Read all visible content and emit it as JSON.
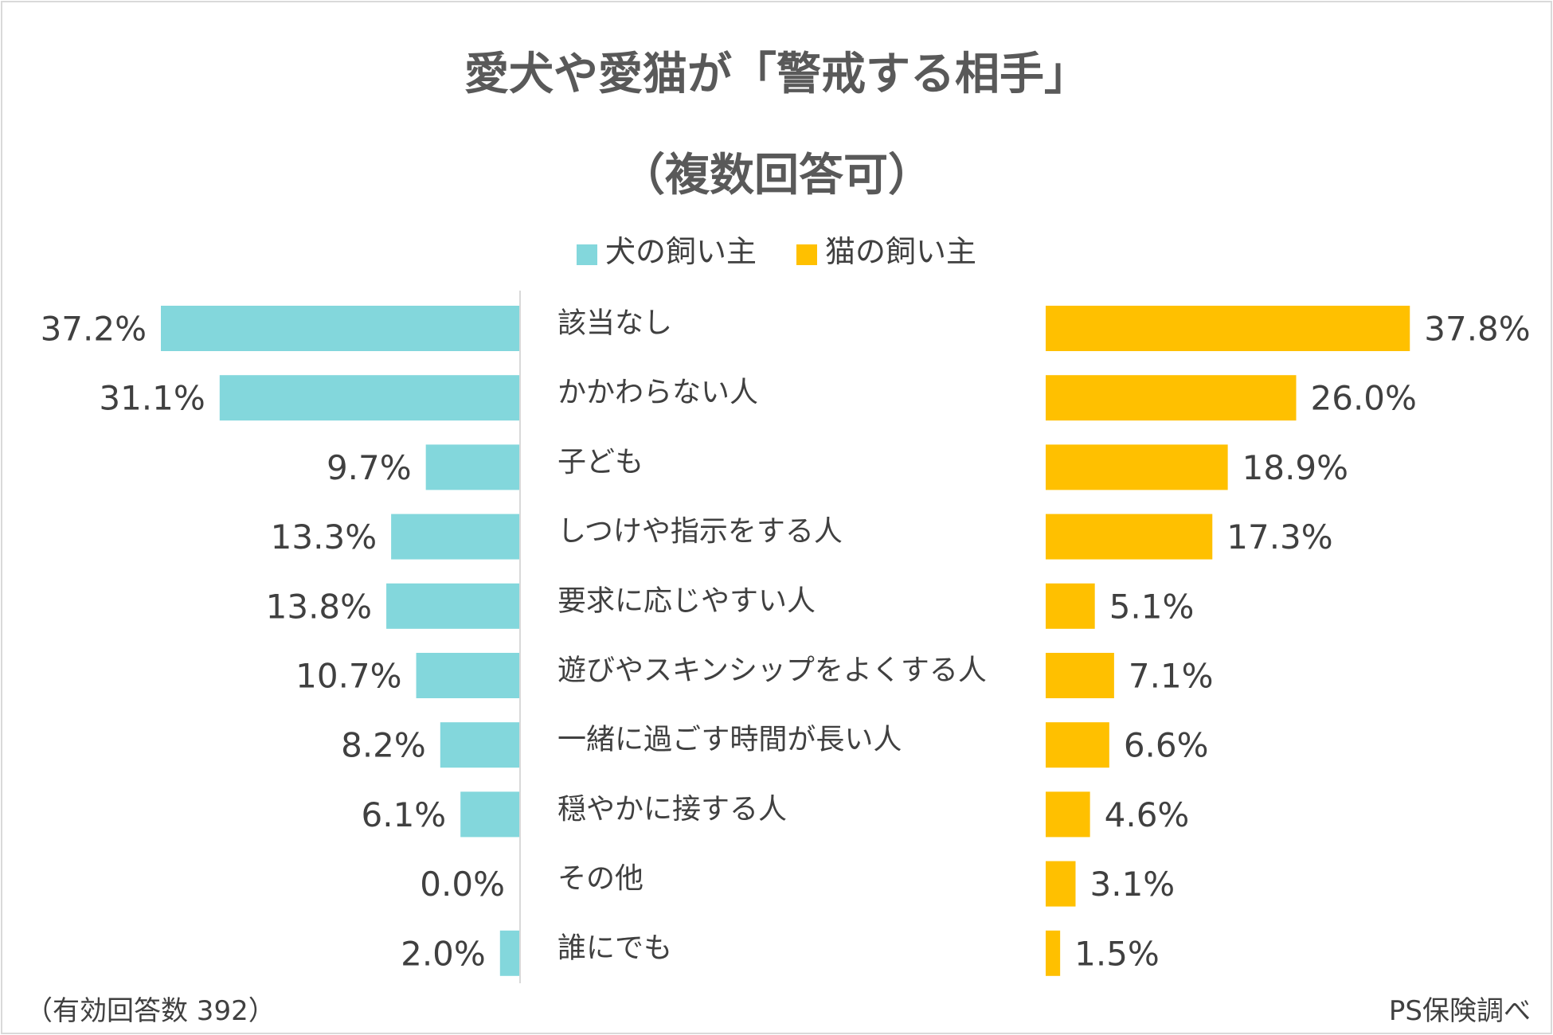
{
  "title": "愛犬や愛猫が「警戒する相手」",
  "subtitle": "（複数回答可）",
  "legend": {
    "dog": "犬の飼い主",
    "cat": "猫の飼い主"
  },
  "colors": {
    "dog": "#83D7DC",
    "cat": "#FFC000",
    "axis": "#d9d9d9",
    "text": "#404040"
  },
  "footer": {
    "sample": "（有効回答数 392）",
    "source": "PS保険調べ"
  },
  "chart_data": {
    "type": "bar",
    "orientation": "horizontal-diverging",
    "title": "愛犬や愛猫が「警戒する相手」",
    "subtitle": "（複数回答可）",
    "categories": [
      "該当なし",
      "かかわらない人",
      "子ども",
      "しつけや指示をする人",
      "要求に応じやすい人",
      "遊びやスキンシップをよくする人",
      "一緒に過ごす時間が長い人",
      "穏やかに接する人",
      "その他",
      "誰にでも"
    ],
    "series": [
      {
        "name": "犬の飼い主",
        "side": "left",
        "values": [
          37.2,
          31.1,
          9.7,
          13.3,
          13.8,
          10.7,
          8.2,
          6.1,
          0.0,
          2.0
        ],
        "labels": [
          "37.2%",
          "31.1%",
          "9.7%",
          "13.3%",
          "13.8%",
          "10.7%",
          "8.2%",
          "6.1%",
          "0.0%",
          "2.0%"
        ]
      },
      {
        "name": "猫の飼い主",
        "side": "right",
        "values": [
          37.8,
          26.0,
          18.9,
          17.3,
          5.1,
          7.1,
          6.6,
          4.6,
          3.1,
          1.5
        ],
        "labels": [
          "37.8%",
          "26.0%",
          "18.9%",
          "17.3%",
          "5.1%",
          "7.1%",
          "6.6%",
          "4.6%",
          "3.1%",
          "1.5%"
        ]
      }
    ],
    "unit": "%",
    "xlim": [
      0,
      40
    ],
    "legend_position": "top-center",
    "grid": false
  }
}
